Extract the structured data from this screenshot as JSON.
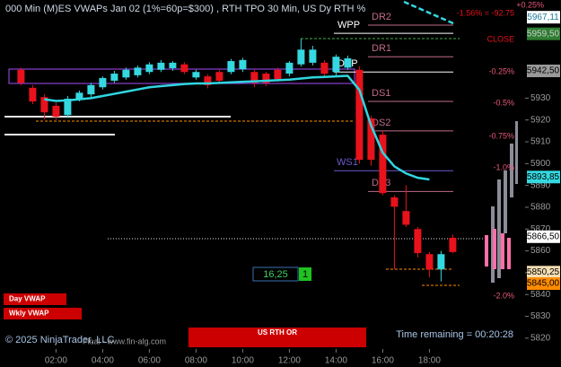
{
  "chart_data": {
    "type": "candlestick",
    "title": "000 Min (M)ES VWAPs Jan 02 (1%=60p=$300) , RTH TPO 30 Min, US Dy RTH %",
    "x": [
      0.5,
      1,
      1.5,
      2,
      2.5,
      3,
      3.5,
      4,
      4.5,
      5,
      5.5,
      6,
      6.5,
      7,
      7.5,
      8,
      8.5,
      9,
      9.5,
      10,
      10.5,
      11,
      11.5,
      12,
      12.5,
      13,
      13.5,
      14,
      14.5,
      15,
      15.5,
      16,
      16.5,
      17,
      17.5,
      18,
      18.5,
      19
    ],
    "open": [
      5943,
      5934.75,
      5930.5,
      5926.5,
      5922.25,
      5929.75,
      5931.75,
      5935,
      5938,
      5939.5,
      5940.5,
      5942,
      5943,
      5943.75,
      5945.5,
      5939.5,
      5940,
      5942,
      5942,
      5943.25,
      5942,
      5941.25,
      5943,
      5941.25,
      5945.5,
      5946.25,
      5946.25,
      5942,
      5944,
      5943,
      5920.75,
      5913.25,
      5884.5,
      5878.25,
      5870,
      5858.5,
      5851.5,
      5866
    ],
    "high": [
      5944,
      5936,
      5931.75,
      5928,
      5931,
      5933.5,
      5937,
      5940,
      5942.5,
      5944,
      5945,
      5946.5,
      5947.5,
      5947,
      5946.5,
      5943,
      5941,
      5943,
      5948,
      5948.5,
      5943,
      5942,
      5944,
      5947,
      5957.25,
      5954,
      5947.5,
      5950,
      5949.5,
      5944.5,
      5922,
      5915,
      5885.5,
      5890,
      5871,
      5859.5,
      5860,
      5867.5
    ],
    "low": [
      5936,
      5927.25,
      5920.25,
      5920,
      5921,
      5928.5,
      5930.5,
      5934,
      5937,
      5938.5,
      5939.5,
      5941,
      5942,
      5942.5,
      5941,
      5938.5,
      5934.5,
      5937,
      5941,
      5942,
      5935,
      5935.5,
      5937.5,
      5940,
      5944.5,
      5945,
      5940,
      5940.5,
      5943,
      5900,
      5899,
      5885.5,
      5851.5,
      5871,
      5857,
      5848,
      5846,
      5859
    ],
    "close": [
      5937,
      5928.5,
      5923.5,
      5921.5,
      5929.75,
      5932.5,
      5936,
      5939.25,
      5941.25,
      5943,
      5944,
      5945.5,
      5946.25,
      5946.25,
      5942,
      5942,
      5936,
      5938,
      5947,
      5947.5,
      5937,
      5937,
      5938.75,
      5946.25,
      5952.25,
      5952.25,
      5941.25,
      5949,
      5948.25,
      5901.75,
      5901.75,
      5886.5,
      5880.25,
      5872,
      5859,
      5851.5,
      5858.5,
      5859.5
    ],
    "up_color": "#35d8e0",
    "down_color": "#e8121c",
    "vwap": {
      "color": "#2fd6e0",
      "values": [
        null,
        null,
        5929.5,
        5928.75,
        5929,
        5929.5,
        5930,
        5931,
        5932,
        5933,
        5934,
        5935,
        5935.5,
        5936,
        5936.5,
        5936.75,
        5936.75,
        5937,
        5937.25,
        5937.5,
        5937.75,
        5938,
        5938.25,
        5938.5,
        5939,
        5939.5,
        5939.75,
        5940,
        5940.25,
        5933.75,
        5917.5,
        5905,
        5898.75,
        5895.5,
        5893.5,
        5892.75,
        null,
        null
      ]
    },
    "xlim": [
      -0.4,
      22.1
    ],
    "xticks": [
      {
        "value": 2,
        "label": "02:00"
      },
      {
        "value": 4,
        "label": "04:00"
      },
      {
        "value": 6,
        "label": "06:00"
      },
      {
        "value": 8,
        "label": "08:00"
      },
      {
        "value": 10,
        "label": "10:00"
      },
      {
        "value": 12,
        "label": "12:00"
      },
      {
        "value": 14,
        "label": "14:00"
      },
      {
        "value": 16,
        "label": "16:00"
      },
      {
        "value": 18,
        "label": "18:00"
      }
    ],
    "ylim": [
      5815,
      5975
    ],
    "yticks": [
      5820,
      5830,
      5840,
      5850,
      5860,
      5870,
      5880,
      5890,
      5900,
      5910,
      5920,
      5930
    ],
    "price_markers": [
      {
        "value": 5967.11,
        "label": "5967,11",
        "color": "#ffffff",
        "text_color": "#1a7a9a"
      },
      {
        "value": 5959.5,
        "label": "5959,50",
        "color": "#2e7d32",
        "text_color": "#cccccc"
      },
      {
        "value": 5942.5,
        "label": "5942,50",
        "color": "#9a9a9a",
        "text_color": "#000000"
      },
      {
        "value": 5893.85,
        "label": "5893,85",
        "color": "#35d8e0",
        "text_color": "#000000"
      },
      {
        "value": 5866.5,
        "label": "5866,50",
        "color": "#ffffff",
        "text_color": "#000000"
      },
      {
        "value": 5850.25,
        "label": "5850,25",
        "color": "#f5deb3",
        "text_color": "#000000"
      },
      {
        "value": 5845,
        "label": "5845,00",
        "color": "#ff8c00",
        "text_color": "#000000"
      }
    ],
    "levels": [
      {
        "label": "DR2",
        "value": 5963.5,
        "color": "#c06a8a"
      },
      {
        "label": "WPP",
        "value": 5959.75,
        "color": "#ffffff"
      },
      {
        "label": "DR1",
        "value": 5949,
        "color": "#c06a8a"
      },
      {
        "label": "DPP",
        "value": 5942,
        "color": "#ffffff"
      },
      {
        "label": "DS1",
        "value": 5928.5,
        "color": "#c06a8a"
      },
      {
        "label": "DS2",
        "value": 5915,
        "color": "#c06a8a"
      },
      {
        "label": "WS1",
        "value": 5896.75,
        "color": "#6a5acd"
      },
      {
        "label": "DS3",
        "value": 5887.25,
        "color": "#c06a8a"
      }
    ],
    "percent_labels": [
      "+0.25%",
      "-0.25%",
      "-0.5%",
      "-0.75%",
      "-1.0%",
      "-2.0%"
    ],
    "change_label": "-1.56% = -92.75",
    "close_label": "CLOSE",
    "copyright": "© 2025 NinjaTrader, LLC",
    "vendor": "Final - www.fin-alg.com",
    "timer": "Time remaining = 00:20:28",
    "buttons": [
      "Day VWAP",
      "Wkly VWAP",
      "US RTH OR"
    ],
    "counter": {
      "text": "16,25",
      "count": "1"
    }
  }
}
